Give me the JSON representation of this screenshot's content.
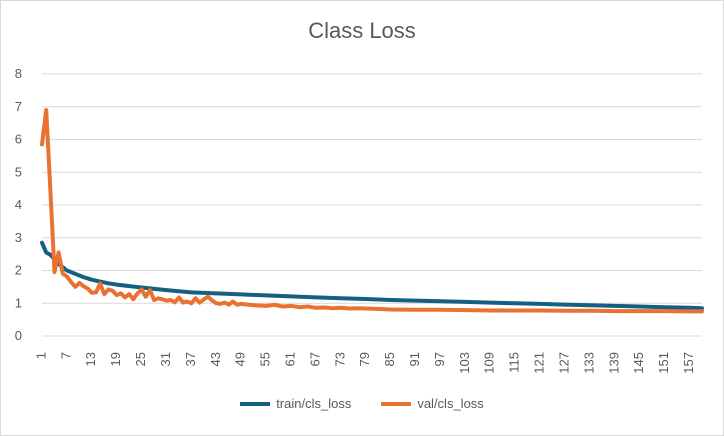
{
  "chart_data": {
    "type": "line",
    "title": "Class Loss",
    "xlabel": "",
    "ylabel": "",
    "ylim": [
      0,
      8
    ],
    "yticks": [
      0,
      1,
      2,
      3,
      4,
      5,
      6,
      7,
      8
    ],
    "xlim": [
      1,
      160
    ],
    "xticks": [
      1,
      7,
      13,
      19,
      25,
      31,
      37,
      43,
      49,
      55,
      61,
      67,
      73,
      79,
      85,
      91,
      97,
      103,
      109,
      115,
      121,
      127,
      133,
      139,
      145,
      151,
      157
    ],
    "grid": true,
    "legend": "bottom",
    "series": [
      {
        "name": "train/cls_loss",
        "color": "#156082",
        "x": [
          1,
          2,
          3,
          4,
          5,
          6,
          7,
          9,
          11,
          13,
          15,
          17,
          19,
          21,
          25,
          31,
          37,
          43,
          49,
          55,
          61,
          67,
          73,
          79,
          85,
          91,
          97,
          103,
          109,
          115,
          121,
          127,
          133,
          139,
          145,
          151,
          157,
          160
        ],
        "y": [
          2.85,
          2.55,
          2.48,
          2.35,
          2.2,
          2.1,
          2.0,
          1.9,
          1.8,
          1.72,
          1.66,
          1.61,
          1.57,
          1.54,
          1.48,
          1.4,
          1.33,
          1.3,
          1.27,
          1.24,
          1.21,
          1.18,
          1.15,
          1.13,
          1.1,
          1.08,
          1.06,
          1.04,
          1.02,
          1.0,
          0.98,
          0.96,
          0.94,
          0.92,
          0.9,
          0.88,
          0.86,
          0.85
        ]
      },
      {
        "name": "val/cls_loss",
        "color": "#E97132",
        "x": [
          1,
          2,
          3,
          4,
          5,
          6,
          7,
          8,
          9,
          10,
          11,
          12,
          13,
          14,
          15,
          16,
          17,
          18,
          19,
          20,
          21,
          22,
          23,
          24,
          25,
          26,
          27,
          28,
          29,
          30,
          31,
          32,
          33,
          34,
          35,
          36,
          37,
          38,
          39,
          40,
          41,
          42,
          43,
          44,
          45,
          46,
          47,
          48,
          49,
          51,
          53,
          55,
          57,
          59,
          61,
          63,
          65,
          67,
          69,
          71,
          73,
          75,
          77,
          79,
          81,
          83,
          85,
          91,
          97,
          103,
          109,
          115,
          121,
          127,
          133,
          139,
          145,
          151,
          157,
          160
        ],
        "y": [
          5.85,
          6.9,
          4.5,
          1.95,
          2.55,
          1.9,
          1.82,
          1.65,
          1.5,
          1.62,
          1.52,
          1.45,
          1.32,
          1.33,
          1.6,
          1.28,
          1.42,
          1.38,
          1.25,
          1.3,
          1.18,
          1.28,
          1.12,
          1.3,
          1.42,
          1.2,
          1.4,
          1.1,
          1.15,
          1.12,
          1.08,
          1.1,
          1.03,
          1.18,
          1.02,
          1.05,
          1.0,
          1.15,
          1.02,
          1.12,
          1.2,
          1.08,
          1.0,
          0.98,
          1.02,
          0.96,
          1.05,
          0.96,
          0.98,
          0.95,
          0.93,
          0.92,
          0.95,
          0.9,
          0.92,
          0.88,
          0.9,
          0.86,
          0.87,
          0.85,
          0.86,
          0.84,
          0.85,
          0.84,
          0.83,
          0.82,
          0.81,
          0.8,
          0.8,
          0.79,
          0.78,
          0.78,
          0.78,
          0.77,
          0.77,
          0.76,
          0.76,
          0.76,
          0.75,
          0.75
        ]
      }
    ]
  }
}
